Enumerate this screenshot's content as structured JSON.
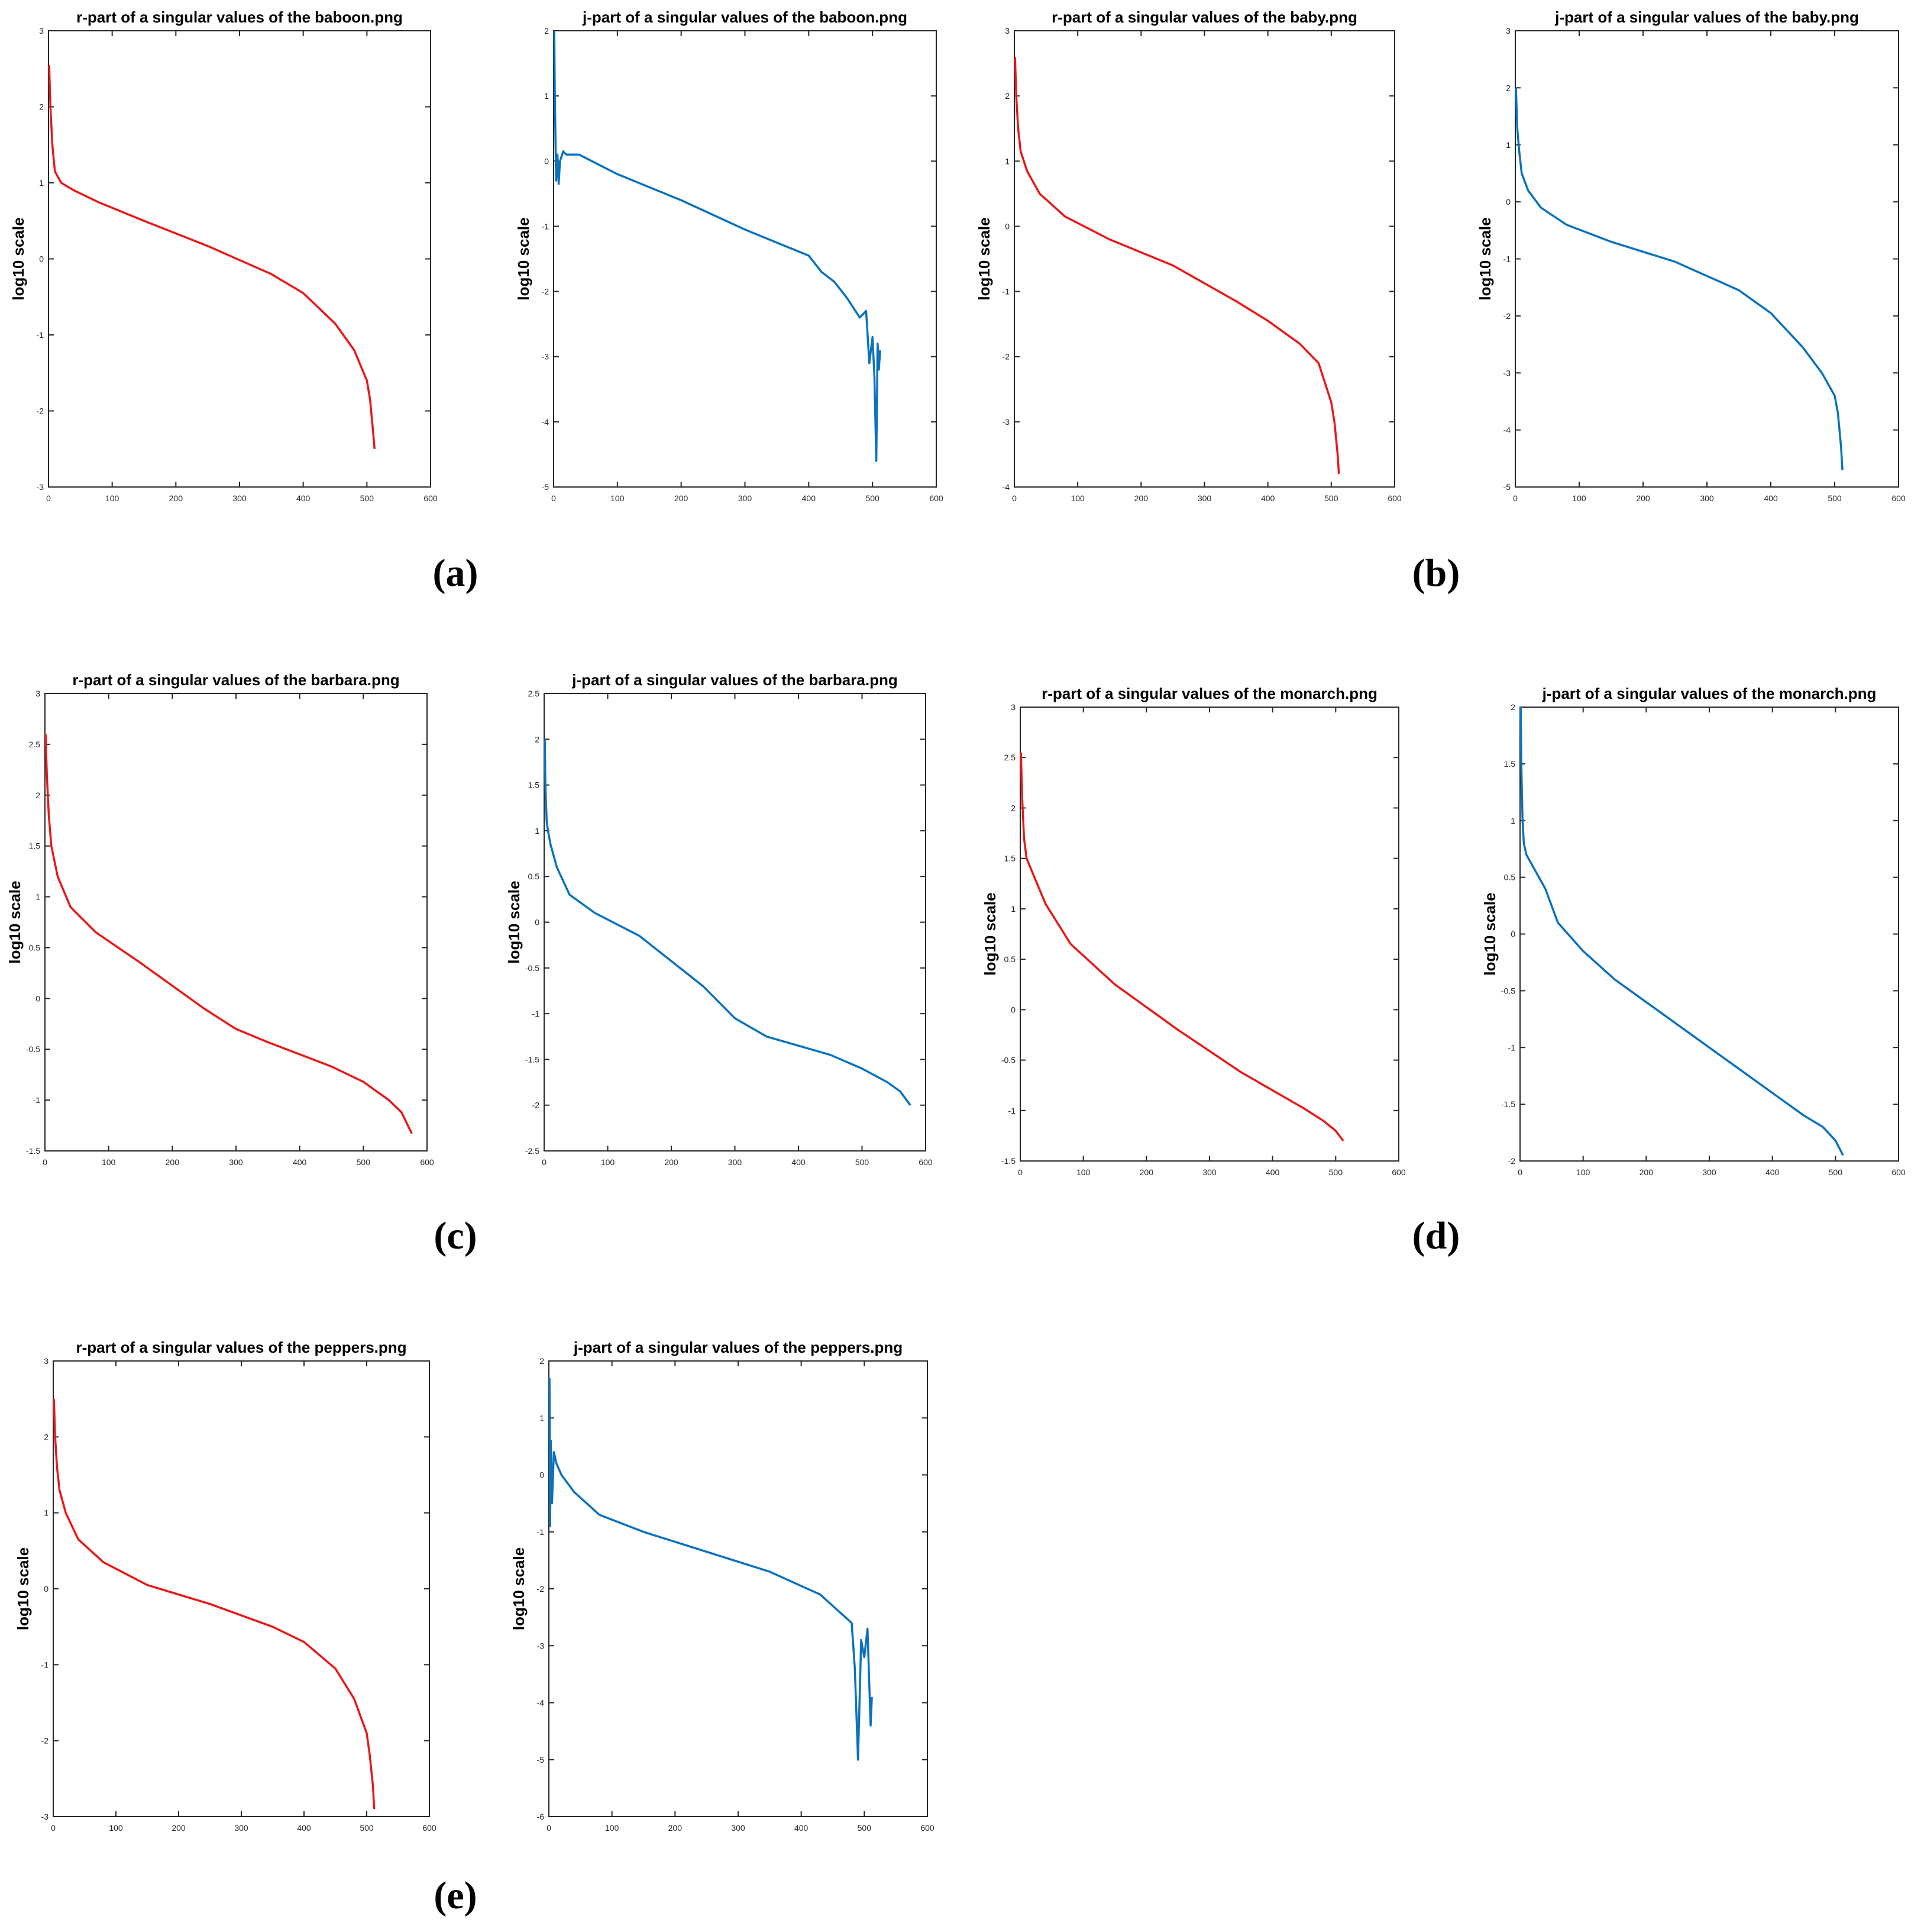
{
  "figure": {
    "panel_labels": [
      "(a)",
      "(b)",
      "(c)",
      "(d)",
      "(e)"
    ],
    "colors": {
      "r_line": "#e81818",
      "j_line": "#0a72bd",
      "axis": "#262626"
    }
  },
  "chart_data": [
    {
      "type": "line",
      "color": "red",
      "title": "r-part of a singular values of the baboon.png",
      "xlabel": "",
      "ylabel": "log10 scale",
      "xlim": [
        0,
        600
      ],
      "ylim": [
        -3,
        3
      ],
      "xticks": [
        0,
        100,
        200,
        300,
        400,
        500,
        600
      ],
      "yticks": [
        -3,
        -2,
        -1,
        0,
        1,
        2,
        3
      ],
      "series": [
        {
          "name": "r-part",
          "x": [
            1,
            3,
            6,
            10,
            20,
            40,
            80,
            150,
            250,
            350,
            400,
            450,
            480,
            500,
            505,
            510,
            512
          ],
          "y": [
            2.55,
            2.0,
            1.5,
            1.15,
            1.0,
            0.9,
            0.74,
            0.5,
            0.17,
            -0.2,
            -0.45,
            -0.85,
            -1.2,
            -1.6,
            -1.85,
            -2.3,
            -2.5
          ]
        }
      ]
    },
    {
      "type": "line",
      "color": "blue",
      "title": "j-part of a singular values of the baboon.png",
      "xlabel": "",
      "ylabel": "log10 scale",
      "xlim": [
        0,
        600
      ],
      "ylim": [
        -5,
        2
      ],
      "xticks": [
        0,
        100,
        200,
        300,
        400,
        500,
        600
      ],
      "yticks": [
        -5,
        -4,
        -3,
        -2,
        -1,
        0,
        1,
        2
      ],
      "series": [
        {
          "name": "j-part",
          "x": [
            1,
            2,
            4,
            6,
            8,
            10,
            15,
            20,
            40,
            100,
            200,
            300,
            350,
            400,
            420,
            440,
            460,
            480,
            490,
            495,
            500,
            503,
            506,
            508,
            510,
            512
          ],
          "y": [
            2.0,
            0.9,
            -0.3,
            0.1,
            -0.35,
            0.0,
            0.15,
            0.1,
            0.1,
            -0.2,
            -0.6,
            -1.05,
            -1.25,
            -1.45,
            -1.7,
            -1.85,
            -2.1,
            -2.4,
            -2.3,
            -3.1,
            -2.7,
            -3.3,
            -4.6,
            -2.8,
            -3.2,
            -2.9
          ]
        }
      ]
    },
    {
      "type": "line",
      "color": "red",
      "title": "r-part of a singular values of the baby.png",
      "xlabel": "",
      "ylabel": "log10 scale",
      "xlim": [
        0,
        600
      ],
      "ylim": [
        -4,
        3
      ],
      "xticks": [
        0,
        100,
        200,
        300,
        400,
        500,
        600
      ],
      "yticks": [
        -4,
        -3,
        -2,
        -1,
        0,
        1,
        2,
        3
      ],
      "series": [
        {
          "name": "r-part",
          "x": [
            1,
            3,
            6,
            10,
            20,
            40,
            80,
            150,
            250,
            350,
            400,
            450,
            480,
            500,
            505,
            510,
            512
          ],
          "y": [
            2.6,
            2.0,
            1.5,
            1.15,
            0.85,
            0.5,
            0.15,
            -0.2,
            -0.6,
            -1.15,
            -1.45,
            -1.8,
            -2.1,
            -2.7,
            -3.0,
            -3.5,
            -3.8
          ]
        }
      ]
    },
    {
      "type": "line",
      "color": "blue",
      "title": "j-part of a singular values of the baby.png",
      "xlabel": "",
      "ylabel": "log10 scale",
      "xlim": [
        0,
        600
      ],
      "ylim": [
        -5,
        3
      ],
      "xticks": [
        0,
        100,
        200,
        300,
        400,
        500,
        600
      ],
      "yticks": [
        -5,
        -4,
        -3,
        -2,
        -1,
        0,
        1,
        2,
        3
      ],
      "series": [
        {
          "name": "j-part",
          "x": [
            1,
            3,
            6,
            10,
            20,
            40,
            80,
            150,
            250,
            350,
            400,
            450,
            480,
            500,
            505,
            510,
            512
          ],
          "y": [
            2.0,
            1.3,
            0.9,
            0.5,
            0.2,
            -0.1,
            -0.4,
            -0.7,
            -1.05,
            -1.55,
            -1.95,
            -2.55,
            -3.0,
            -3.4,
            -3.7,
            -4.3,
            -4.7
          ]
        }
      ]
    },
    {
      "type": "line",
      "color": "red",
      "title": "r-part of a singular values of the barbara.png",
      "xlabel": "",
      "ylabel": "log10 scale",
      "xlim": [
        0,
        600
      ],
      "ylim": [
        -1.5,
        3
      ],
      "xticks": [
        0,
        100,
        200,
        300,
        400,
        500,
        600
      ],
      "yticks": [
        -1.5,
        -1,
        -0.5,
        0,
        0.5,
        1,
        1.5,
        2,
        2.5,
        3
      ],
      "series": [
        {
          "name": "r-part",
          "x": [
            1,
            3,
            6,
            10,
            20,
            40,
            80,
            150,
            250,
            300,
            350,
            400,
            450,
            500,
            540,
            560,
            576
          ],
          "y": [
            2.6,
            2.2,
            1.8,
            1.5,
            1.2,
            0.9,
            0.65,
            0.35,
            -0.1,
            -0.3,
            -0.43,
            -0.55,
            -0.67,
            -0.82,
            -1.0,
            -1.12,
            -1.33
          ]
        }
      ]
    },
    {
      "type": "line",
      "color": "blue",
      "title": "j-part of a singular values of the barbara.png",
      "xlabel": "",
      "ylabel": "log10 scale",
      "xlim": [
        0,
        600
      ],
      "ylim": [
        -2.5,
        2.5
      ],
      "xticks": [
        0,
        100,
        200,
        300,
        400,
        500,
        600
      ],
      "yticks": [
        -2.5,
        -2,
        -1.5,
        -1,
        -0.5,
        0,
        0.5,
        1,
        1.5,
        2,
        2.5
      ],
      "series": [
        {
          "name": "j-part",
          "x": [
            1,
            2,
            4,
            6,
            10,
            20,
            40,
            80,
            150,
            250,
            300,
            350,
            400,
            450,
            500,
            540,
            560,
            576
          ],
          "y": [
            2.0,
            1.5,
            1.1,
            1.0,
            0.85,
            0.6,
            0.3,
            0.1,
            -0.15,
            -0.7,
            -1.05,
            -1.25,
            -1.35,
            -1.45,
            -1.6,
            -1.75,
            -1.85,
            -2.0
          ]
        }
      ]
    },
    {
      "type": "line",
      "color": "red",
      "title": "r-part of a singular values of the monarch.png",
      "xlabel": "",
      "ylabel": "log10 scale",
      "xlim": [
        0,
        600
      ],
      "ylim": [
        -1.5,
        3
      ],
      "xticks": [
        0,
        100,
        200,
        300,
        400,
        500,
        600
      ],
      "yticks": [
        -1.5,
        -1,
        -0.5,
        0,
        0.5,
        1,
        1.5,
        2,
        2.5,
        3
      ],
      "series": [
        {
          "name": "r-part",
          "x": [
            1,
            3,
            6,
            10,
            20,
            40,
            80,
            150,
            250,
            350,
            400,
            450,
            480,
            500,
            512
          ],
          "y": [
            2.55,
            2.1,
            1.7,
            1.5,
            1.35,
            1.05,
            0.65,
            0.25,
            -0.2,
            -0.62,
            -0.8,
            -0.98,
            -1.1,
            -1.2,
            -1.3
          ]
        }
      ]
    },
    {
      "type": "line",
      "color": "blue",
      "title": "j-part of a singular values of the monarch.png",
      "xlabel": "",
      "ylabel": "log10 scale",
      "xlim": [
        0,
        600
      ],
      "ylim": [
        -2,
        2
      ],
      "xticks": [
        0,
        100,
        200,
        300,
        400,
        500,
        600
      ],
      "yticks": [
        -2,
        -1.5,
        -1,
        -0.5,
        0,
        0.5,
        1,
        1.5,
        2
      ],
      "series": [
        {
          "name": "j-part",
          "x": [
            1,
            2,
            4,
            6,
            10,
            20,
            40,
            60,
            100,
            150,
            250,
            350,
            400,
            450,
            480,
            500,
            512
          ],
          "y": [
            2.0,
            1.5,
            1.0,
            0.8,
            0.7,
            0.6,
            0.4,
            0.1,
            -0.15,
            -0.4,
            -0.8,
            -1.2,
            -1.4,
            -1.6,
            -1.7,
            -1.82,
            -1.95
          ]
        }
      ]
    },
    {
      "type": "line",
      "color": "red",
      "title": "r-part of a singular values of the peppers.png",
      "xlabel": "",
      "ylabel": "log10 scale",
      "xlim": [
        0,
        600
      ],
      "ylim": [
        -3,
        3
      ],
      "xticks": [
        0,
        100,
        200,
        300,
        400,
        500,
        600
      ],
      "yticks": [
        -3,
        -2,
        -1,
        0,
        1,
        2,
        3
      ],
      "series": [
        {
          "name": "r-part",
          "x": [
            1,
            3,
            6,
            10,
            20,
            40,
            80,
            150,
            250,
            350,
            400,
            450,
            480,
            500,
            505,
            510,
            512
          ],
          "y": [
            2.5,
            2.0,
            1.6,
            1.3,
            1.0,
            0.65,
            0.35,
            0.05,
            -0.2,
            -0.5,
            -0.7,
            -1.05,
            -1.45,
            -1.9,
            -2.2,
            -2.6,
            -2.9
          ]
        }
      ]
    },
    {
      "type": "line",
      "color": "blue",
      "title": "j-part of a singular values of the peppers.png",
      "xlabel": "",
      "ylabel": "log10 scale",
      "xlim": [
        0,
        600
      ],
      "ylim": [
        -6,
        2
      ],
      "xticks": [
        0,
        100,
        200,
        300,
        400,
        500,
        600
      ],
      "yticks": [
        -6,
        -5,
        -4,
        -3,
        -2,
        -1,
        0,
        1,
        2
      ],
      "series": [
        {
          "name": "j-part",
          "x": [
            1,
            2,
            3,
            5,
            8,
            12,
            20,
            40,
            80,
            150,
            250,
            350,
            400,
            430,
            450,
            470,
            480,
            485,
            490,
            495,
            500,
            505,
            510,
            512
          ],
          "y": [
            1.7,
            -0.9,
            0.6,
            -0.5,
            0.4,
            0.2,
            0.0,
            -0.3,
            -0.7,
            -1.0,
            -1.35,
            -1.7,
            -1.95,
            -2.1,
            -2.3,
            -2.5,
            -2.6,
            -3.4,
            -5.0,
            -2.9,
            -3.2,
            -2.7,
            -4.4,
            -3.9
          ]
        }
      ]
    }
  ]
}
